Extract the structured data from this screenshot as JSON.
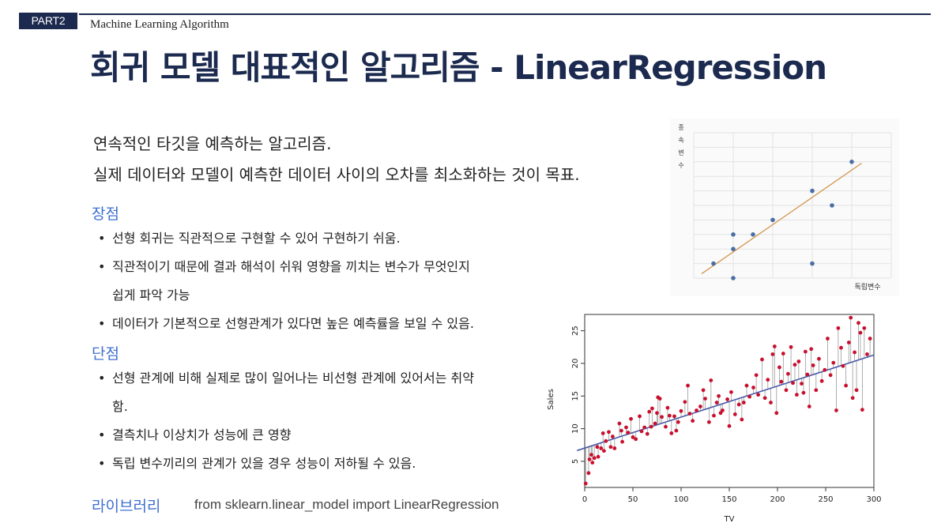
{
  "header": {
    "part": "PART2",
    "subject": "Machine Learning Algorithm",
    "title": "회귀 모델 대표적인 알고리즘 - LinearRegression"
  },
  "intro": {
    "line1": "연속적인 타깃을 예측하는 알고리즘.",
    "line2": "실제 데이터와 모델이 예측한 데이터 사이의 오차를 최소화하는 것이 목표."
  },
  "pros": {
    "heading": "장점",
    "items": [
      {
        "text": "선형 회귀는 직관적으로 구현할 수 있어 구현하기 쉬움.",
        "cont": ""
      },
      {
        "text": "직관적이기 때문에 결과 해석이 쉬워 영향을 끼치는 변수가 무엇인지",
        "cont": "쉽게 파악 가능"
      },
      {
        "text": "데이터가 기본적으로 선형관계가 있다면 높은 예측률을 보일 수 있음.",
        "cont": ""
      }
    ]
  },
  "cons": {
    "heading": "단점",
    "items": [
      {
        "text": "선형 관계에 비해 실제로 많이 일어나는 비선형 관계에 있어서는 취약",
        "cont": "함."
      },
      {
        "text": "결측치나 이상치가 성능에 큰 영향",
        "cont": ""
      },
      {
        "text": "독립 변수끼리의 관계가 있을 경우 성능이 저하될 수 있음.",
        "cont": ""
      }
    ]
  },
  "library": {
    "heading": "라이브러리",
    "code": "from sklearn.linear_model import LinearRegression"
  },
  "colors": {
    "navy": "#1b2a4e",
    "accent_blue": "#3f6fd0",
    "point_blue": "#4a6fa5",
    "fit_orange": "#d4944a",
    "point_red": "#c8102e",
    "fit_navy": "#4a5aa8"
  },
  "chart_data": [
    {
      "type": "scatter",
      "title": "",
      "ylabel": "종속변수",
      "xlabel": "독립변수",
      "grid": true,
      "xlim": [
        0,
        10
      ],
      "ylim": [
        0,
        10
      ],
      "points": [
        {
          "x": 1,
          "y": 1.0
        },
        {
          "x": 2,
          "y": 0.0
        },
        {
          "x": 2,
          "y": 2.0
        },
        {
          "x": 2,
          "y": 3.0
        },
        {
          "x": 3,
          "y": 3.0
        },
        {
          "x": 4,
          "y": 4.0
        },
        {
          "x": 6,
          "y": 1.0
        },
        {
          "x": 6,
          "y": 6.0
        },
        {
          "x": 7,
          "y": 5.0
        },
        {
          "x": 8,
          "y": 8.0
        }
      ],
      "fit_line": {
        "x": [
          0.4,
          8.5
        ],
        "y": [
          0.3,
          7.9
        ]
      }
    },
    {
      "type": "scatter",
      "title": "",
      "xlabel": "TV",
      "ylabel": "Sales",
      "xlim": [
        0,
        300
      ],
      "ylim": [
        1,
        27.5
      ],
      "x_ticks": [
        "0",
        "50",
        "100",
        "150",
        "200",
        "250",
        "300"
      ],
      "y_ticks": [
        "5",
        "10",
        "15",
        "20",
        "25"
      ],
      "grid": false,
      "residual_lines": true,
      "fit_line": {
        "intercept": 7.03,
        "slope": 0.0475
      },
      "points": [
        {
          "x": 1,
          "y": 1.6
        },
        {
          "x": 4,
          "y": 3.2
        },
        {
          "x": 5,
          "y": 5.3
        },
        {
          "x": 7,
          "y": 6.0
        },
        {
          "x": 8,
          "y": 4.8
        },
        {
          "x": 10,
          "y": 5.5
        },
        {
          "x": 13,
          "y": 7.2
        },
        {
          "x": 14,
          "y": 5.7
        },
        {
          "x": 17,
          "y": 7.0
        },
        {
          "x": 19,
          "y": 9.3
        },
        {
          "x": 20,
          "y": 6.6
        },
        {
          "x": 22,
          "y": 8.1
        },
        {
          "x": 25,
          "y": 9.5
        },
        {
          "x": 27,
          "y": 7.2
        },
        {
          "x": 29,
          "y": 8.8
        },
        {
          "x": 31,
          "y": 7.0
        },
        {
          "x": 36,
          "y": 10.8
        },
        {
          "x": 38,
          "y": 9.7
        },
        {
          "x": 39,
          "y": 8.0
        },
        {
          "x": 43,
          "y": 10.2
        },
        {
          "x": 45,
          "y": 9.4
        },
        {
          "x": 48,
          "y": 11.5
        },
        {
          "x": 50,
          "y": 8.7
        },
        {
          "x": 53,
          "y": 8.4
        },
        {
          "x": 57,
          "y": 11.9
        },
        {
          "x": 59,
          "y": 9.6
        },
        {
          "x": 62,
          "y": 10.2
        },
        {
          "x": 65,
          "y": 9.2
        },
        {
          "x": 67,
          "y": 12.6
        },
        {
          "x": 69,
          "y": 10.3
        },
        {
          "x": 70,
          "y": 13.1
        },
        {
          "x": 73,
          "y": 10.8
        },
        {
          "x": 75,
          "y": 12.4
        },
        {
          "x": 76,
          "y": 14.8
        },
        {
          "x": 78,
          "y": 14.6
        },
        {
          "x": 80,
          "y": 11.8
        },
        {
          "x": 84,
          "y": 10.3
        },
        {
          "x": 86,
          "y": 13.2
        },
        {
          "x": 88,
          "y": 12.0
        },
        {
          "x": 90,
          "y": 9.3
        },
        {
          "x": 93,
          "y": 11.9
        },
        {
          "x": 95,
          "y": 9.7
        },
        {
          "x": 97,
          "y": 11.0
        },
        {
          "x": 100,
          "y": 12.7
        },
        {
          "x": 104,
          "y": 14.1
        },
        {
          "x": 107,
          "y": 16.6
        },
        {
          "x": 109,
          "y": 12.3
        },
        {
          "x": 112,
          "y": 11.2
        },
        {
          "x": 116,
          "y": 12.8
        },
        {
          "x": 120,
          "y": 13.4
        },
        {
          "x": 123,
          "y": 15.9
        },
        {
          "x": 125,
          "y": 14.6
        },
        {
          "x": 129,
          "y": 11.0
        },
        {
          "x": 131,
          "y": 17.4
        },
        {
          "x": 134,
          "y": 12.0
        },
        {
          "x": 137,
          "y": 14.0
        },
        {
          "x": 139,
          "y": 15.0
        },
        {
          "x": 141,
          "y": 12.4
        },
        {
          "x": 143,
          "y": 12.8
        },
        {
          "x": 148,
          "y": 14.5
        },
        {
          "x": 150,
          "y": 10.4
        },
        {
          "x": 152,
          "y": 15.6
        },
        {
          "x": 156,
          "y": 12.2
        },
        {
          "x": 160,
          "y": 13.7
        },
        {
          "x": 163,
          "y": 11.4
        },
        {
          "x": 165,
          "y": 14.0
        },
        {
          "x": 168,
          "y": 16.6
        },
        {
          "x": 171,
          "y": 14.9
        },
        {
          "x": 175,
          "y": 16.3
        },
        {
          "x": 178,
          "y": 18.2
        },
        {
          "x": 180,
          "y": 15.2
        },
        {
          "x": 184,
          "y": 20.6
        },
        {
          "x": 187,
          "y": 14.7
        },
        {
          "x": 190,
          "y": 17.5
        },
        {
          "x": 193,
          "y": 14.0
        },
        {
          "x": 195,
          "y": 21.4
        },
        {
          "x": 197,
          "y": 22.6
        },
        {
          "x": 199,
          "y": 12.4
        },
        {
          "x": 202,
          "y": 19.4
        },
        {
          "x": 204,
          "y": 17.2
        },
        {
          "x": 206,
          "y": 21.5
        },
        {
          "x": 209,
          "y": 15.9
        },
        {
          "x": 211,
          "y": 18.4
        },
        {
          "x": 214,
          "y": 22.5
        },
        {
          "x": 216,
          "y": 17.0
        },
        {
          "x": 218,
          "y": 19.8
        },
        {
          "x": 220,
          "y": 15.2
        },
        {
          "x": 222,
          "y": 20.3
        },
        {
          "x": 225,
          "y": 16.9
        },
        {
          "x": 227,
          "y": 15.5
        },
        {
          "x": 229,
          "y": 21.8
        },
        {
          "x": 231,
          "y": 18.3
        },
        {
          "x": 233,
          "y": 13.4
        },
        {
          "x": 235,
          "y": 22.2
        },
        {
          "x": 237,
          "y": 19.7
        },
        {
          "x": 240,
          "y": 15.9
        },
        {
          "x": 243,
          "y": 20.7
        },
        {
          "x": 246,
          "y": 17.3
        },
        {
          "x": 249,
          "y": 19.0
        },
        {
          "x": 252,
          "y": 23.8
        },
        {
          "x": 255,
          "y": 18.2
        },
        {
          "x": 258,
          "y": 20.1
        },
        {
          "x": 261,
          "y": 12.8
        },
        {
          "x": 263,
          "y": 25.4
        },
        {
          "x": 266,
          "y": 22.4
        },
        {
          "x": 268,
          "y": 19.6
        },
        {
          "x": 271,
          "y": 16.6
        },
        {
          "x": 274,
          "y": 23.2
        },
        {
          "x": 276,
          "y": 27.0
        },
        {
          "x": 278,
          "y": 14.7
        },
        {
          "x": 280,
          "y": 21.7
        },
        {
          "x": 282,
          "y": 15.9
        },
        {
          "x": 284,
          "y": 26.2
        },
        {
          "x": 286,
          "y": 24.7
        },
        {
          "x": 288,
          "y": 12.9
        },
        {
          "x": 290,
          "y": 25.4
        },
        {
          "x": 293,
          "y": 21.4
        },
        {
          "x": 296,
          "y": 23.8
        }
      ]
    }
  ]
}
